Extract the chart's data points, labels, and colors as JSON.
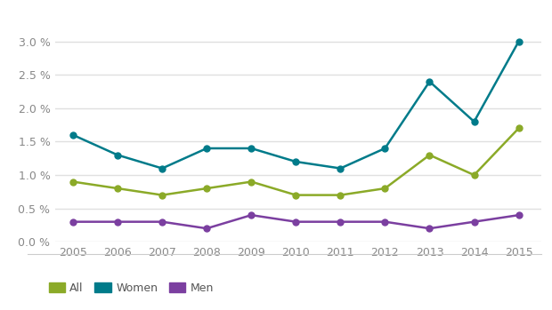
{
  "years": [
    2005,
    2006,
    2007,
    2008,
    2009,
    2010,
    2011,
    2012,
    2013,
    2014,
    2015
  ],
  "all": [
    0.9,
    0.8,
    0.7,
    0.8,
    0.9,
    0.7,
    0.7,
    0.8,
    1.3,
    1.0,
    1.7
  ],
  "women": [
    1.6,
    1.3,
    1.1,
    1.4,
    1.4,
    1.2,
    1.1,
    1.4,
    2.4,
    1.8,
    3.0
  ],
  "men": [
    0.3,
    0.3,
    0.3,
    0.2,
    0.4,
    0.3,
    0.3,
    0.3,
    0.2,
    0.3,
    0.4
  ],
  "color_all": "#8baa28",
  "color_women": "#007b8a",
  "color_men": "#7b3fa0",
  "ylim": [
    0.0,
    3.25
  ],
  "yticks": [
    0.0,
    0.5,
    1.0,
    1.5,
    2.0,
    2.5,
    3.0
  ],
  "ytick_labels": [
    "0.0 %",
    "0.5 %",
    "1.0 %",
    "1.5 %",
    "2.0 %",
    "2.5 %",
    "3.0 %"
  ],
  "background_color": "#ffffff",
  "plot_area_color": "#ffffff",
  "grid_color": "#e0e0e0",
  "tick_color": "#888888",
  "legend_labels": [
    "All",
    "Women",
    "Men"
  ],
  "marker": "o",
  "marker_size": 5,
  "linewidth": 1.8,
  "figsize": [
    6.2,
    3.49
  ],
  "dpi": 100
}
